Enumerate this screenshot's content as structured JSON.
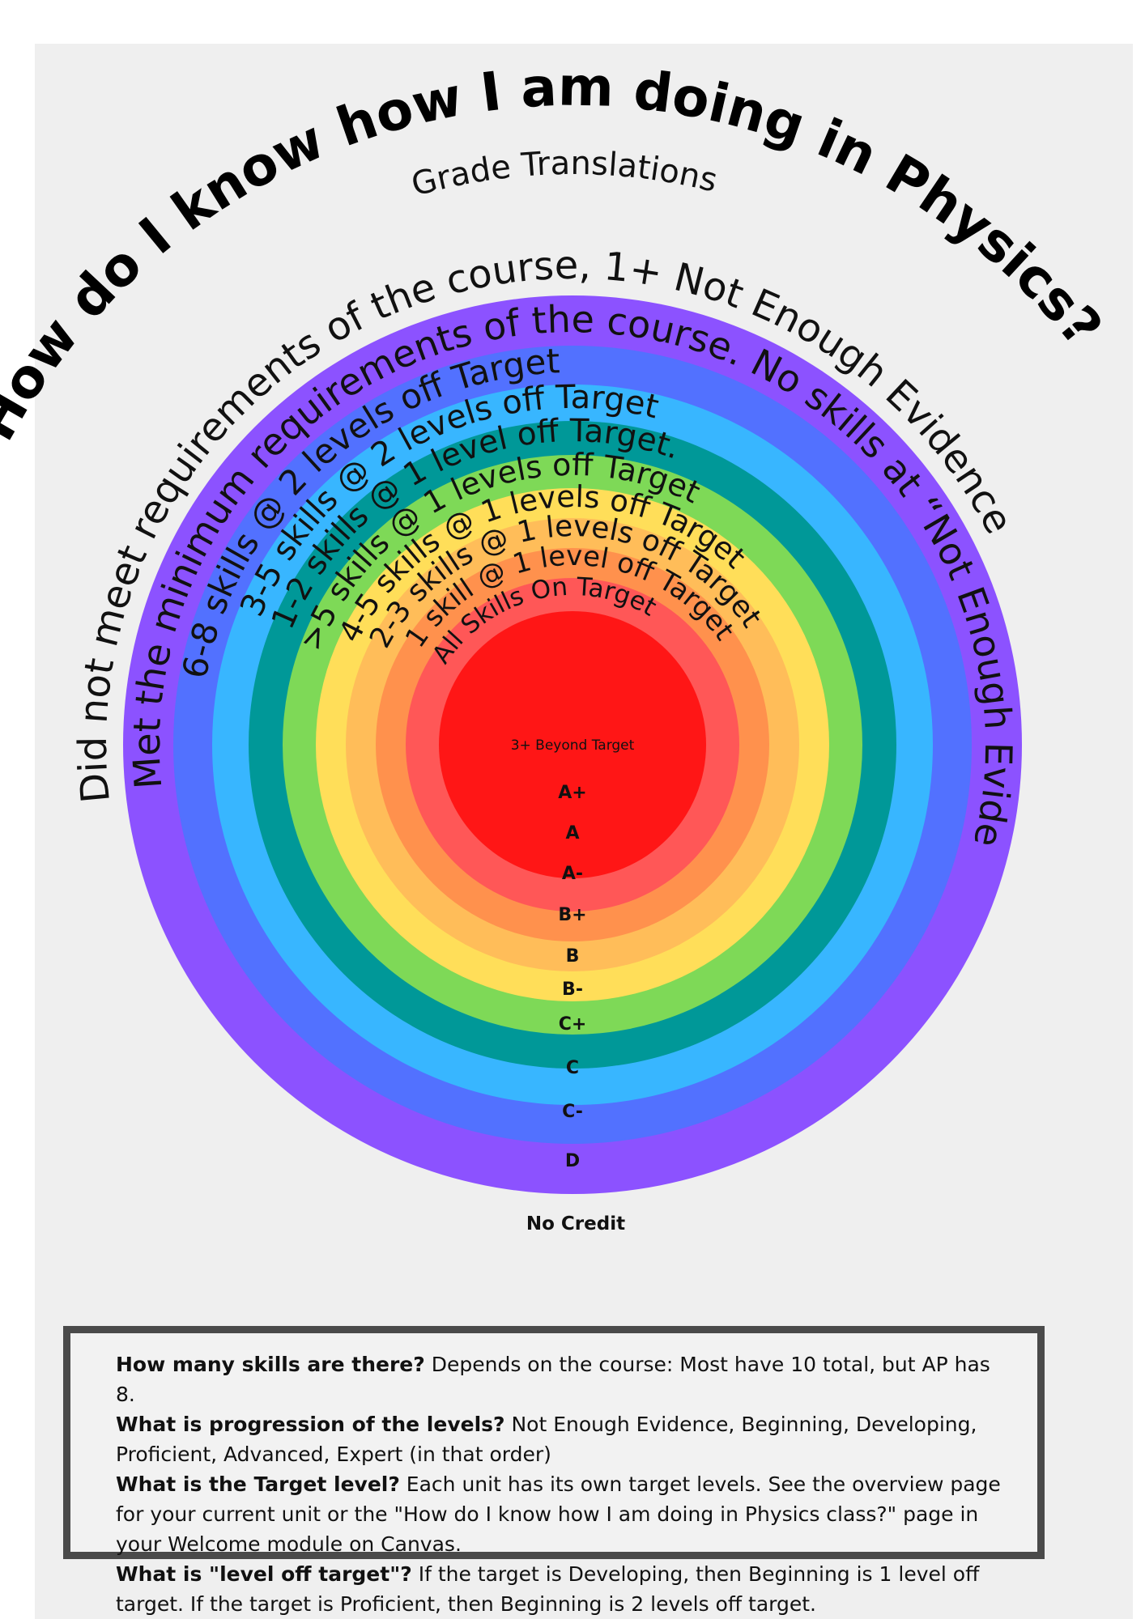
{
  "title": "How do I know how I am doing in Physics?",
  "subtitle": "Grade Translations",
  "outer_caption": "Did not meet requirements of the course, 1+ Not Enough Evidence",
  "center_label": "3+ Beyond Target",
  "rings": [
    {
      "grade": "D",
      "label": "Met the minimum requirements of the course. No skills at “Not Enough Evidence”",
      "color": "#8c52ff"
    },
    {
      "grade": "C-",
      "label": "6-8 skills @ 2 levels off Target",
      "color": "#5271ff"
    },
    {
      "grade": "C",
      "label": "3-5 skills @ 2 levels off Target",
      "color": "#38b6ff"
    },
    {
      "grade": "C+",
      "label": "1-2 skills @ 1 level off Target.",
      "color": "#009898"
    },
    {
      "grade": "B-",
      "label": ">5 skills @ 1 levels off Target",
      "color": "#7ed957"
    },
    {
      "grade": "B",
      "label": "4-5 skills @ 1 levels off Target",
      "color": "#ffde59"
    },
    {
      "grade": "B+",
      "label": "2-3 skills @ 1 levels off Target",
      "color": "#ffbd59"
    },
    {
      "grade": "A-",
      "label": "1 skill @ 1 level off Target",
      "color": "#ff914d"
    },
    {
      "grade": "A",
      "label": "All Skills On Target",
      "color": "#ff5757"
    },
    {
      "grade": "A+",
      "label": "",
      "color": "#ff1616"
    }
  ],
  "no_credit": "No Credit",
  "faq": [
    {
      "q": "How many skills are there?",
      "a": "Depends on the course: Most have 10 total, but AP has 8."
    },
    {
      "q": "What is progression of the levels?",
      "a": "Not Enough Evidence, Beginning, Developing, Proficient, Advanced, Expert (in that order)"
    },
    {
      "q": "What is the Target level?",
      "a": "Each unit has its own target levels. See the overview page for your current unit or the \"How do I know how I am doing in Physics class?\" page in your Welcome module on Canvas."
    },
    {
      "q": "What is \"level off target\"?",
      "a": "If the target is Developing, then Beginning is 1 level off target. If the target is Proficient, then Beginning is 2 levels off target."
    }
  ]
}
